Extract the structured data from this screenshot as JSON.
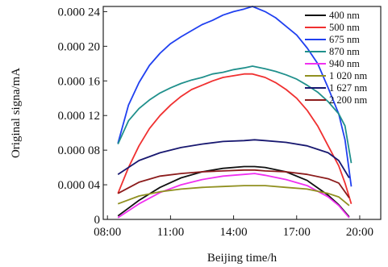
{
  "chart_data": {
    "type": "line",
    "xlabel": "Beijing time/h",
    "ylabel": "Original signa/mA",
    "xlim": [
      7.8,
      21.0
    ],
    "ylim": [
      0,
      0.000246
    ],
    "x_ticks": [
      {
        "value": 8,
        "label": "08:00"
      },
      {
        "value": 11,
        "label": "11:00"
      },
      {
        "value": 14,
        "label": "14:00"
      },
      {
        "value": 17,
        "label": "17:00"
      },
      {
        "value": 20,
        "label": "20:00"
      }
    ],
    "y_ticks": [
      {
        "value": 0,
        "label": "0"
      },
      {
        "value": 4e-05,
        "label": "0.000 04"
      },
      {
        "value": 8e-05,
        "label": "0.000 08"
      },
      {
        "value": 0.00012,
        "label": "0.000 12"
      },
      {
        "value": 0.00016,
        "label": "0.000 16"
      },
      {
        "value": 0.0002,
        "label": "0.000 20"
      },
      {
        "value": 0.00024,
        "label": "0.000 24"
      }
    ],
    "grid": false,
    "legend_position": "top-right",
    "series": [
      {
        "name": "400 nm",
        "color": "#111111",
        "x": [
          8.5,
          9.5,
          10.5,
          11.5,
          12.5,
          13.5,
          14.5,
          15.0,
          15.5,
          16.5,
          17.5,
          18.5,
          19.0,
          19.5
        ],
        "y": [
          4e-06,
          2.2e-05,
          3.7e-05,
          4.8e-05,
          5.5e-05,
          5.9e-05,
          6.1e-05,
          6.1e-05,
          6e-05,
          5.5e-05,
          4.5e-05,
          2.8e-05,
          1.7e-05,
          3e-06
        ]
      },
      {
        "name": "500 nm",
        "color": "#f03030",
        "x": [
          8.5,
          9.0,
          9.5,
          10.0,
          10.5,
          11.0,
          11.5,
          12.0,
          12.5,
          13.0,
          13.5,
          14.0,
          14.5,
          14.9,
          15.5,
          16.0,
          16.5,
          17.0,
          17.5,
          18.0,
          18.5,
          19.0,
          19.3,
          19.6
        ],
        "y": [
          3e-05,
          6e-05,
          8.5e-05,
          0.000105,
          0.00012,
          0.000132,
          0.000142,
          0.00015,
          0.000155,
          0.00016,
          0.000164,
          0.000166,
          0.000168,
          0.000168,
          0.000164,
          0.000158,
          0.00015,
          0.00014,
          0.000126,
          0.000108,
          8.5e-05,
          6.2e-05,
          4.2e-05,
          1.8e-05
        ]
      },
      {
        "name": "675 nm",
        "color": "#2040f0",
        "x": [
          8.5,
          9.0,
          9.5,
          10.0,
          10.5,
          11.0,
          11.5,
          12.0,
          12.5,
          13.0,
          13.5,
          14.0,
          14.5,
          14.9,
          15.5,
          16.0,
          16.5,
          17.0,
          17.5,
          18.0,
          18.5,
          19.0,
          19.3,
          19.6
        ],
        "y": [
          8.8e-05,
          0.000132,
          0.000158,
          0.000178,
          0.000192,
          0.000203,
          0.000211,
          0.000218,
          0.000225,
          0.00023,
          0.000236,
          0.00024,
          0.000243,
          0.000246,
          0.00024,
          0.000233,
          0.000223,
          0.000213,
          0.000198,
          0.00018,
          0.000152,
          0.000122,
          9.2e-05,
          3.8e-05
        ]
      },
      {
        "name": "870 nm",
        "color": "#20908c",
        "x": [
          8.5,
          9.0,
          9.5,
          10.0,
          10.5,
          11.0,
          11.5,
          12.0,
          12.5,
          13.0,
          13.5,
          14.0,
          14.5,
          14.9,
          15.5,
          16.0,
          16.5,
          17.0,
          17.5,
          18.0,
          18.5,
          19.0,
          19.3,
          19.6
        ],
        "y": [
          8.7e-05,
          0.000114,
          0.000128,
          0.000138,
          0.000146,
          0.000152,
          0.000157,
          0.000161,
          0.000164,
          0.000168,
          0.00017,
          0.000173,
          0.000175,
          0.000177,
          0.000174,
          0.000171,
          0.000167,
          0.000162,
          0.000155,
          0.000147,
          0.000136,
          0.000122,
          0.000108,
          6.5e-05
        ]
      },
      {
        "name": "940 nm",
        "color": "#f030f0",
        "x": [
          8.5,
          9.5,
          10.5,
          11.5,
          12.5,
          13.5,
          14.5,
          15.0,
          15.5,
          16.5,
          17.5,
          18.5,
          19.0,
          19.5
        ],
        "y": [
          2e-06,
          1.8e-05,
          3.1e-05,
          4e-05,
          4.6e-05,
          5e-05,
          5.2e-05,
          5.3e-05,
          5.1e-05,
          4.6e-05,
          3.9e-05,
          2.6e-05,
          1.6e-05,
          2e-06
        ]
      },
      {
        "name": "1 020 nm",
        "color": "#909020",
        "x": [
          8.5,
          9.5,
          10.5,
          11.5,
          12.5,
          13.5,
          14.5,
          15.0,
          15.5,
          16.5,
          17.5,
          18.5,
          19.0,
          19.5
        ],
        "y": [
          1.8e-05,
          2.7e-05,
          3.2e-05,
          3.5e-05,
          3.7e-05,
          3.8e-05,
          3.9e-05,
          3.9e-05,
          3.9e-05,
          3.7e-05,
          3.5e-05,
          3e-05,
          2.6e-05,
          1.6e-05
        ]
      },
      {
        "name": "1 627 nm",
        "color": "#181870",
        "x": [
          8.5,
          9.5,
          10.5,
          11.5,
          12.5,
          13.5,
          14.5,
          15.0,
          15.5,
          16.5,
          17.5,
          18.5,
          19.0,
          19.5
        ],
        "y": [
          5.2e-05,
          6.8e-05,
          7.7e-05,
          8.3e-05,
          8.7e-05,
          9e-05,
          9.1e-05,
          9.2e-05,
          9.1e-05,
          8.9e-05,
          8.5e-05,
          7.7e-05,
          6.8e-05,
          4.8e-05
        ]
      },
      {
        "name": "2 200 nm",
        "color": "#8c1c1c",
        "x": [
          8.5,
          9.5,
          10.5,
          11.5,
          12.5,
          13.5,
          14.5,
          15.0,
          15.5,
          16.5,
          17.5,
          18.5,
          19.0,
          19.5
        ],
        "y": [
          3e-05,
          4.3e-05,
          5e-05,
          5.3e-05,
          5.5e-05,
          5.6e-05,
          5.7e-05,
          5.7e-05,
          5.6e-05,
          5.5e-05,
          5.2e-05,
          4.7e-05,
          4.2e-05,
          2.5e-05
        ]
      }
    ]
  }
}
